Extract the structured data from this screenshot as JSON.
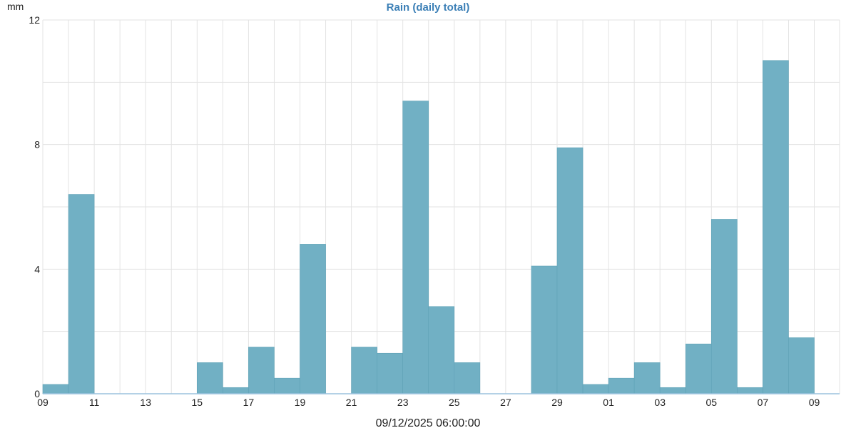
{
  "chart_data": {
    "type": "bar",
    "title": "Rain (daily total)",
    "ylabel": "mm",
    "xlabel": "09/12/2025 06:00:00",
    "ylim": [
      0,
      12
    ],
    "yticks": [
      0,
      4,
      8,
      12
    ],
    "grid": true,
    "colors": {
      "bar": "#71b0c4",
      "title": "#3b7fb6",
      "grid": "#e3e3e3",
      "axis": "#9cc2de"
    },
    "xtick_labels": [
      "09",
      "11",
      "13",
      "15",
      "17",
      "19",
      "21",
      "23",
      "25",
      "27",
      "29",
      "01",
      "03",
      "05",
      "07",
      "09"
    ],
    "categories": [
      "09",
      "10",
      "11",
      "12",
      "13",
      "14",
      "15",
      "16",
      "17",
      "18",
      "19",
      "20",
      "21",
      "22",
      "23",
      "24",
      "25",
      "26",
      "27",
      "28",
      "29",
      "30",
      "01",
      "02",
      "03",
      "04",
      "05",
      "06",
      "07",
      "08"
    ],
    "values": [
      0.3,
      6.4,
      0,
      0,
      0,
      0,
      1.0,
      0.2,
      1.5,
      0.5,
      4.8,
      0,
      1.5,
      1.3,
      9.4,
      2.8,
      1.0,
      0,
      0,
      4.1,
      7.9,
      0.3,
      0.5,
      1.0,
      0.2,
      1.6,
      5.6,
      0.2,
      10.7,
      1.8
    ]
  }
}
